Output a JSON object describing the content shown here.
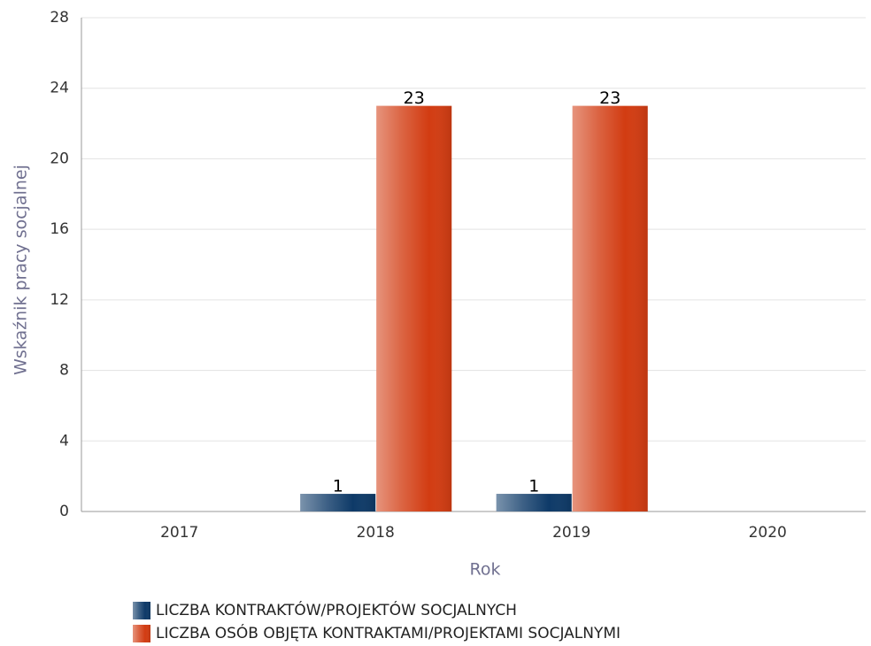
{
  "chart_data": {
    "type": "bar",
    "x_label": "Rok",
    "y_label": "Wskaźnik pracy socjalnej",
    "categories": [
      "2017",
      "2018",
      "2019",
      "2020"
    ],
    "series": [
      {
        "name": "LICZBA KONTRAKTÓW/PROJEKTÓW SOCJALNYCH",
        "color": "#0e3a68",
        "values": [
          null,
          1,
          1,
          null
        ]
      },
      {
        "name": "LICZBA OSÓB OBJĘTA KONTRAKTAMI/PROJEKTAMI SOCJALNYMI",
        "color": "#d23c12",
        "values": [
          null,
          23,
          23,
          null
        ]
      }
    ],
    "ylim": [
      0,
      28
    ],
    "yticks": [
      0,
      4,
      8,
      12,
      16,
      20,
      24,
      28
    ],
    "grid": true
  }
}
